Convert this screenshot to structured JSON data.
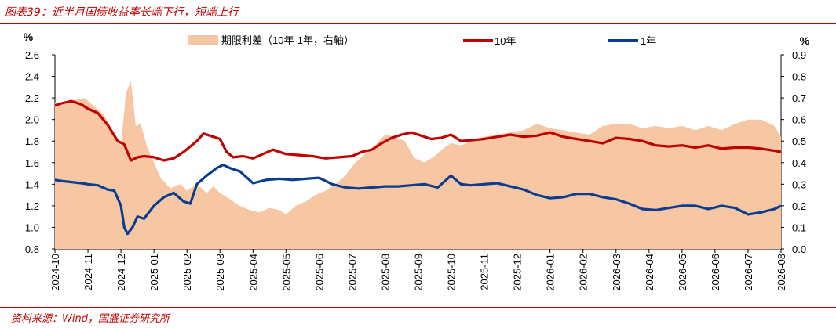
{
  "header": {
    "title": "图表39：近半月国债收益率长端下行，短端上行"
  },
  "footer": {
    "source": "资料来源：Wind，国盛证券研究所"
  },
  "chart_data": {
    "type": "line",
    "left_axis": {
      "unit": "%",
      "min": 0.8,
      "max": 2.6,
      "ticks": [
        "2.6",
        "2.4",
        "2.2",
        "2.0",
        "1.8",
        "1.6",
        "1.4",
        "1.2",
        "1.0",
        "0.8"
      ]
    },
    "right_axis": {
      "unit": "%",
      "min": 0.0,
      "max": 0.9,
      "ticks": [
        "0.9",
        "0.8",
        "0.7",
        "0.6",
        "0.5",
        "0.4",
        "0.3",
        "0.2",
        "0.1",
        "0.0"
      ]
    },
    "x_ticks": [
      "2024-10",
      "2024-11",
      "2024-12",
      "2025-01",
      "2025-02",
      "2025-03",
      "2025-04",
      "2025-05",
      "2025-06",
      "2025-07",
      "2025-08",
      "2025-09",
      "2025-10",
      "2025-11",
      "2025-12",
      "2026-01",
      "2026-02",
      "2026-03",
      "2026-04",
      "2026-05",
      "2026-06",
      "2026-07",
      "2026-08"
    ],
    "series": [
      {
        "name": "期限利差（10年-1年，右轴）",
        "type": "area",
        "axis": "right",
        "color": "#f7c6a3",
        "x": [
          0,
          0.3,
          0.6,
          0.9,
          1.2,
          1.5,
          1.8,
          2.0,
          2.15,
          2.3,
          2.45,
          2.6,
          2.8,
          3.0,
          3.2,
          3.5,
          3.8,
          4.0,
          4.3,
          4.6,
          4.8,
          5.0,
          5.3,
          5.6,
          5.9,
          6.2,
          6.5,
          6.8,
          7.0,
          7.3,
          7.6,
          7.9,
          8.2,
          8.5,
          8.8,
          9.1,
          9.4,
          9.7,
          10.0,
          10.3,
          10.6,
          10.9,
          11.2,
          11.5,
          11.8,
          12.0,
          12.3,
          12.6,
          13.0,
          13.4,
          13.8,
          14.2,
          14.6,
          15.0,
          15.4,
          15.8,
          16.2,
          16.6,
          17.0,
          17.4,
          17.8,
          18.2,
          18.6,
          19.0,
          19.4,
          19.8,
          20.2,
          20.6,
          21.0,
          21.4,
          21.8,
          22.0
        ],
        "values": [
          0.68,
          0.67,
          0.69,
          0.7,
          0.66,
          0.62,
          0.52,
          0.48,
          0.72,
          0.78,
          0.57,
          0.58,
          0.47,
          0.4,
          0.33,
          0.28,
          0.3,
          0.27,
          0.3,
          0.26,
          0.29,
          0.26,
          0.23,
          0.2,
          0.18,
          0.17,
          0.19,
          0.18,
          0.16,
          0.2,
          0.22,
          0.25,
          0.27,
          0.3,
          0.34,
          0.4,
          0.44,
          0.48,
          0.53,
          0.52,
          0.5,
          0.42,
          0.4,
          0.43,
          0.47,
          0.49,
          0.48,
          0.5,
          0.52,
          0.53,
          0.54,
          0.55,
          0.58,
          0.56,
          0.55,
          0.54,
          0.53,
          0.57,
          0.58,
          0.58,
          0.56,
          0.57,
          0.56,
          0.57,
          0.55,
          0.57,
          0.55,
          0.58,
          0.6,
          0.6,
          0.57,
          0.52
        ]
      },
      {
        "name": "10年",
        "type": "line",
        "axis": "left",
        "color": "#c00000",
        "x": [
          0,
          0.2,
          0.5,
          0.8,
          1.0,
          1.3,
          1.6,
          1.9,
          2.1,
          2.3,
          2.5,
          2.7,
          3.0,
          3.3,
          3.6,
          3.9,
          4.1,
          4.3,
          4.5,
          4.8,
          5.0,
          5.2,
          5.4,
          5.7,
          6.0,
          6.3,
          6.6,
          7.0,
          7.4,
          7.8,
          8.2,
          8.6,
          9.0,
          9.3,
          9.6,
          9.9,
          10.2,
          10.5,
          10.8,
          11.1,
          11.4,
          11.7,
          12.0,
          12.3,
          12.7,
          13.0,
          13.4,
          13.8,
          14.2,
          14.6,
          15.0,
          15.4,
          15.8,
          16.2,
          16.6,
          17.0,
          17.4,
          17.8,
          18.2,
          18.6,
          19.0,
          19.4,
          19.8,
          20.2,
          20.6,
          21.0,
          21.4,
          21.8,
          22.0
        ],
        "values": [
          2.13,
          2.15,
          2.17,
          2.14,
          2.1,
          2.06,
          1.95,
          1.8,
          1.77,
          1.62,
          1.65,
          1.66,
          1.65,
          1.62,
          1.64,
          1.7,
          1.75,
          1.8,
          1.87,
          1.84,
          1.82,
          1.7,
          1.65,
          1.66,
          1.64,
          1.68,
          1.72,
          1.68,
          1.67,
          1.66,
          1.64,
          1.65,
          1.66,
          1.7,
          1.72,
          1.78,
          1.83,
          1.86,
          1.88,
          1.85,
          1.82,
          1.83,
          1.86,
          1.8,
          1.81,
          1.82,
          1.84,
          1.86,
          1.84,
          1.85,
          1.88,
          1.84,
          1.82,
          1.8,
          1.78,
          1.83,
          1.82,
          1.8,
          1.76,
          1.75,
          1.76,
          1.74,
          1.76,
          1.73,
          1.74,
          1.74,
          1.73,
          1.71,
          1.7
        ]
      },
      {
        "name": "1年",
        "type": "line",
        "axis": "left",
        "color": "#0a3d91",
        "x": [
          0,
          0.2,
          0.5,
          0.8,
          1.0,
          1.3,
          1.6,
          1.8,
          2.0,
          2.1,
          2.2,
          2.35,
          2.5,
          2.7,
          3.0,
          3.3,
          3.6,
          3.9,
          4.1,
          4.3,
          4.6,
          4.9,
          5.1,
          5.3,
          5.6,
          6.0,
          6.4,
          6.8,
          7.2,
          7.6,
          8.0,
          8.4,
          8.8,
          9.2,
          9.6,
          10.0,
          10.4,
          10.8,
          11.2,
          11.6,
          12.0,
          12.3,
          12.6,
          13.0,
          13.4,
          13.8,
          14.2,
          14.6,
          15.0,
          15.4,
          15.8,
          16.2,
          16.6,
          17.0,
          17.4,
          17.8,
          18.2,
          18.6,
          19.0,
          19.4,
          19.8,
          20.2,
          20.6,
          21.0,
          21.4,
          21.8,
          22.0
        ],
        "values": [
          1.44,
          1.43,
          1.42,
          1.41,
          1.4,
          1.39,
          1.35,
          1.34,
          1.2,
          1.0,
          0.94,
          1.0,
          1.1,
          1.08,
          1.2,
          1.28,
          1.32,
          1.24,
          1.22,
          1.4,
          1.48,
          1.55,
          1.58,
          1.55,
          1.52,
          1.41,
          1.44,
          1.45,
          1.44,
          1.45,
          1.46,
          1.4,
          1.37,
          1.36,
          1.37,
          1.38,
          1.38,
          1.39,
          1.4,
          1.37,
          1.48,
          1.4,
          1.39,
          1.4,
          1.41,
          1.38,
          1.35,
          1.3,
          1.27,
          1.28,
          1.31,
          1.31,
          1.28,
          1.26,
          1.22,
          1.17,
          1.16,
          1.18,
          1.2,
          1.2,
          1.17,
          1.2,
          1.18,
          1.12,
          1.14,
          1.17,
          1.2
        ]
      }
    ]
  }
}
